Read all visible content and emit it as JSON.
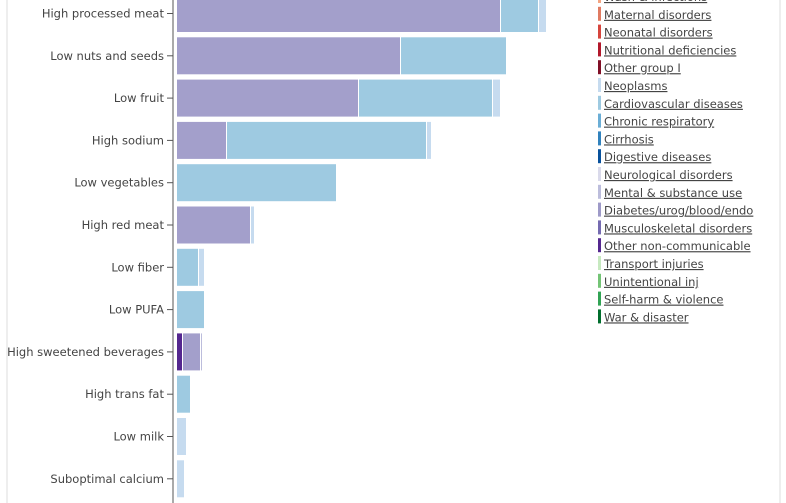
{
  "chart_data": {
    "type": "bar",
    "orientation": "horizontal",
    "stacked": true,
    "title": "",
    "xlabel": "",
    "ylabel": "",
    "categories": [
      "High processed meat",
      "Low nuts and seeds",
      "Low fruit",
      "High sodium",
      "Low vegetables",
      "High red meat",
      "Low fiber",
      "Low PUFA",
      "High sweetened beverages",
      "High trans fat",
      "Low milk",
      "Suboptimal calcium"
    ],
    "series": [
      {
        "name": "Other non-communicable",
        "color": "#54278f",
        "values": [
          0,
          0,
          0,
          0,
          0,
          0,
          0,
          0,
          6,
          0,
          0,
          0
        ]
      },
      {
        "name": "Diabetes/urog/blood/endo",
        "color": "#a39fcb",
        "values": [
          324,
          224,
          182,
          50,
          0,
          74,
          0,
          0,
          18,
          0,
          0,
          0
        ]
      },
      {
        "name": "Mental & substance use",
        "color": "#bcbddc",
        "values": [
          0,
          0,
          0,
          0,
          0,
          0,
          0,
          0,
          2,
          0,
          0,
          0
        ]
      },
      {
        "name": "Cardiovascular diseases",
        "color": "#9ecae1",
        "values": [
          38,
          106,
          134,
          200,
          160,
          0,
          22,
          28,
          0,
          14,
          0,
          0
        ]
      },
      {
        "name": "Neoplasms",
        "color": "#c6dbef",
        "values": [
          8,
          0,
          8,
          5,
          0,
          4,
          6,
          0,
          0,
          0,
          10,
          8
        ]
      }
    ],
    "legend": {
      "placement": "right",
      "entries": [
        {
          "name": "Wash & infections",
          "color": "#f4a582"
        },
        {
          "name": "Maternal disorders",
          "color": "#e07b62"
        },
        {
          "name": "Neonatal disorders",
          "color": "#d6453d"
        },
        {
          "name": "Nutritional deficiencies",
          "color": "#b2182b"
        },
        {
          "name": "Other group I",
          "color": "#800f26"
        },
        {
          "name": "Neoplasms",
          "color": "#c6dbef"
        },
        {
          "name": "Cardiovascular diseases",
          "color": "#9ecae1"
        },
        {
          "name": "Chronic respiratory",
          "color": "#6baed6"
        },
        {
          "name": "Cirrhosis",
          "color": "#3182bd"
        },
        {
          "name": "Digestive diseases",
          "color": "#08519c"
        },
        {
          "name": "Neurological disorders",
          "color": "#dadaeb"
        },
        {
          "name": "Mental & substance use",
          "color": "#bcbddc"
        },
        {
          "name": "Diabetes/urog/blood/endo",
          "color": "#9e9ac8"
        },
        {
          "name": "Musculoskeletal disorders",
          "color": "#756bb1"
        },
        {
          "name": "Other non-communicable",
          "color": "#54278f"
        },
        {
          "name": "Transport injuries",
          "color": "#c7e9c0"
        },
        {
          "name": "Unintentional inj",
          "color": "#74c476"
        },
        {
          "name": "Self-harm & violence",
          "color": "#31a354"
        },
        {
          "name": "War & disaster",
          "color": "#006d2c"
        }
      ]
    },
    "grid": false
  }
}
